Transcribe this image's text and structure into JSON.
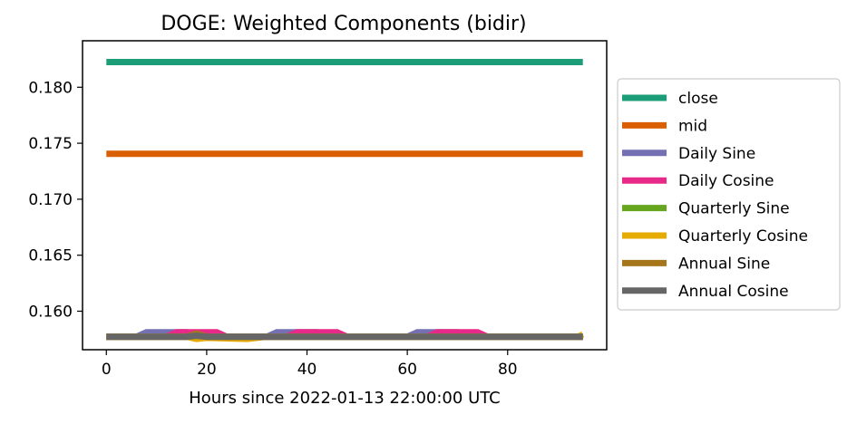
{
  "chart_data": {
    "type": "line",
    "title": "DOGE: Weighted Components (bidir)",
    "xlabel": "Hours since 2022-01-13 22:00:00 UTC",
    "ylabel": "",
    "xlim": [
      -4.75,
      99.75
    ],
    "ylim": [
      0.15656,
      0.18415
    ],
    "xticks": [
      0,
      20,
      40,
      60,
      80
    ],
    "yticks": [
      0.16,
      0.165,
      0.17,
      0.175,
      0.18
    ],
    "ytick_labels": [
      "0.160",
      "0.165",
      "0.170",
      "0.175",
      "0.180"
    ],
    "grid": false,
    "legend_position": "right-outside",
    "series": [
      {
        "name": "close",
        "color": "#1b9e77",
        "x": [
          0,
          95
        ],
        "y": [
          0.18225,
          0.18225
        ]
      },
      {
        "name": "mid",
        "color": "#d95f02",
        "x": [
          0,
          95
        ],
        "y": [
          0.17405,
          0.17405
        ]
      },
      {
        "name": "Daily Sine",
        "color": "#7570b3",
        "x": [
          0,
          6,
          8,
          16,
          18,
          30,
          32,
          34,
          42,
          44,
          56,
          58,
          60,
          62,
          70,
          72,
          84,
          95
        ],
        "y": [
          0.15772,
          0.15772,
          0.15812,
          0.15812,
          0.15772,
          0.15772,
          0.15772,
          0.15812,
          0.15812,
          0.15772,
          0.15772,
          0.15772,
          0.15772,
          0.15812,
          0.15812,
          0.15772,
          0.15772,
          0.15772
        ]
      },
      {
        "name": "Daily Cosine",
        "color": "#e7298a",
        "x": [
          0,
          12,
          14,
          22,
          24,
          36,
          38,
          46,
          48,
          64,
          66,
          74,
          76,
          95
        ],
        "y": [
          0.15772,
          0.15772,
          0.15812,
          0.15812,
          0.15772,
          0.15772,
          0.15812,
          0.15812,
          0.15772,
          0.15772,
          0.15812,
          0.15812,
          0.15772,
          0.15772
        ]
      },
      {
        "name": "Quarterly Sine",
        "color": "#66a61e",
        "x": [
          0,
          95
        ],
        "y": [
          0.15772,
          0.15772
        ]
      },
      {
        "name": "Quarterly Cosine",
        "color": "#e6ab02",
        "x": [
          0,
          16,
          18,
          20,
          28,
          32,
          40,
          94,
          95
        ],
        "y": [
          0.15772,
          0.15772,
          0.15752,
          0.15762,
          0.15752,
          0.15772,
          0.15772,
          0.15772,
          0.15792
        ]
      },
      {
        "name": "Annual Sine",
        "color": "#a6761d",
        "x": [
          0,
          16,
          18,
          20,
          95
        ],
        "y": [
          0.15772,
          0.15772,
          0.158,
          0.15772,
          0.15772
        ]
      },
      {
        "name": "Annual Cosine",
        "color": "#666666",
        "x": [
          0,
          16,
          18,
          20,
          95
        ],
        "y": [
          0.15772,
          0.15772,
          0.1578,
          0.15772,
          0.15772
        ]
      }
    ]
  }
}
